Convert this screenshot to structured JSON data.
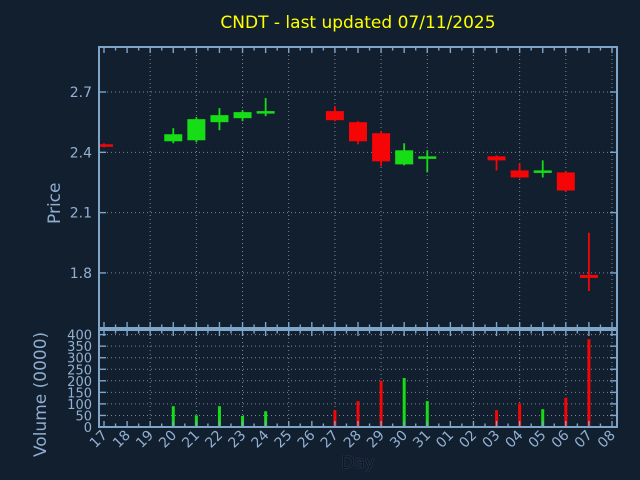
{
  "title": "CNDT - last updated 07/11/2025",
  "colors": {
    "background": "#121f2f",
    "spine": "#7fa5c9",
    "tick_label": "#92b0d2",
    "grid": "#b7c1cb",
    "title": "#ffff00",
    "up": "#17dd17",
    "down": "#f50505"
  },
  "price_panel": {
    "ylabel": "Price",
    "yticks": [
      1.8,
      2.1,
      2.4,
      2.7
    ]
  },
  "volume_panel": {
    "ylabel": "Volume (0000)",
    "yticks": [
      0,
      50,
      100,
      150,
      200,
      250,
      300,
      350,
      400
    ]
  },
  "x_axis": {
    "label": "Day",
    "days": [
      "17",
      "18",
      "19",
      "20",
      "21",
      "22",
      "23",
      "24",
      "25",
      "26",
      "27",
      "28",
      "29",
      "30",
      "31",
      "01",
      "02",
      "03",
      "04",
      "05",
      "06",
      "07",
      "08"
    ],
    "gridline_days": [
      "19",
      "21",
      "23",
      "25",
      "27",
      "29",
      "31",
      "02",
      "04",
      "06",
      "08"
    ]
  },
  "chart_data": {
    "type": "candlestick",
    "title": "CNDT - last updated 07/11/2025",
    "xlabel": "Day",
    "ylabel_price": "Price",
    "ylabel_volume": "Volume (0000)",
    "x": [
      "17",
      "18",
      "19",
      "20",
      "21",
      "22",
      "23",
      "24",
      "25",
      "26",
      "27",
      "28",
      "29",
      "30",
      "31",
      "01",
      "02",
      "03",
      "04",
      "05",
      "06",
      "07",
      "08"
    ],
    "price_ylim": [
      1.526,
      2.924
    ],
    "volume_ylim": [
      0,
      420
    ],
    "price_yticks": [
      1.8,
      2.1,
      2.4,
      2.7
    ],
    "volume_yticks": [
      0,
      50,
      100,
      150,
      200,
      250,
      300,
      350,
      400
    ],
    "grid": true,
    "ohlc": [
      {
        "day": "17",
        "open": 2.44,
        "high": 2.445,
        "low": 2.425,
        "close": 2.43,
        "volume": 0,
        "direction": "down"
      },
      {
        "day": "20",
        "open": 2.455,
        "high": 2.52,
        "low": 2.445,
        "close": 2.49,
        "volume": 90,
        "direction": "up"
      },
      {
        "day": "21",
        "open": 2.46,
        "high": 2.575,
        "low": 2.45,
        "close": 2.565,
        "volume": 50,
        "direction": "up"
      },
      {
        "day": "22",
        "open": 2.55,
        "high": 2.62,
        "low": 2.51,
        "close": 2.585,
        "volume": 90,
        "direction": "up"
      },
      {
        "day": "23",
        "open": 2.57,
        "high": 2.61,
        "low": 2.555,
        "close": 2.6,
        "volume": 48,
        "direction": "up"
      },
      {
        "day": "24",
        "open": 2.595,
        "high": 2.67,
        "low": 2.58,
        "close": 2.605,
        "volume": 68,
        "direction": "up"
      },
      {
        "day": "27",
        "open": 2.605,
        "high": 2.63,
        "low": 2.555,
        "close": 2.56,
        "volume": 73,
        "direction": "down"
      },
      {
        "day": "28",
        "open": 2.55,
        "high": 2.555,
        "low": 2.44,
        "close": 2.455,
        "volume": 112,
        "direction": "down"
      },
      {
        "day": "29",
        "open": 2.495,
        "high": 2.505,
        "low": 2.33,
        "close": 2.355,
        "volume": 200,
        "direction": "down"
      },
      {
        "day": "30",
        "open": 2.34,
        "high": 2.445,
        "low": 2.335,
        "close": 2.41,
        "volume": 212,
        "direction": "up"
      },
      {
        "day": "31",
        "open": 2.375,
        "high": 2.41,
        "low": 2.3,
        "close": 2.38,
        "volume": 112,
        "direction": "up"
      },
      {
        "day": "03",
        "open": 2.38,
        "high": 2.385,
        "low": 2.31,
        "close": 2.36,
        "volume": 73,
        "direction": "down"
      },
      {
        "day": "04",
        "open": 2.31,
        "high": 2.345,
        "low": 2.27,
        "close": 2.275,
        "volume": 102,
        "direction": "down"
      },
      {
        "day": "05",
        "open": 2.3,
        "high": 2.36,
        "low": 2.275,
        "close": 2.31,
        "volume": 77,
        "direction": "up"
      },
      {
        "day": "06",
        "open": 2.3,
        "high": 2.305,
        "low": 2.205,
        "close": 2.21,
        "volume": 127,
        "direction": "down"
      },
      {
        "day": "07",
        "open": 1.79,
        "high": 2.0,
        "low": 1.71,
        "close": 1.775,
        "volume": 380,
        "direction": "down"
      }
    ]
  }
}
